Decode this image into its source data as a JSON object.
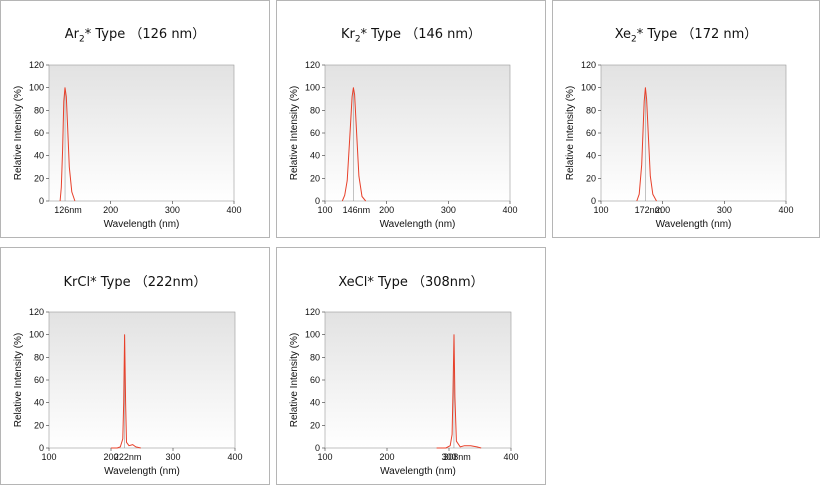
{
  "chart_data": [
    {
      "type": "line",
      "title": "Ar",
      "title_sub": "2",
      "title_rest": "* Type",
      "title_peak": "（126 nm）",
      "xlabel": "Wavelength (nm)",
      "ylabel": "Relative Intensity (%)",
      "xlim": [
        100,
        400
      ],
      "ylim": [
        0,
        120
      ],
      "x_ticks": [
        "200",
        "300",
        "400"
      ],
      "y_ticks": [
        "0",
        "20",
        "40",
        "60",
        "80",
        "100",
        "120"
      ],
      "peak_label": "126nm",
      "peak_nm": 126,
      "series": [
        {
          "x": [
            118,
            120,
            122,
            124,
            126,
            128,
            130,
            133,
            137,
            142
          ],
          "y": [
            0,
            12,
            45,
            88,
            100,
            92,
            68,
            30,
            8,
            0
          ]
        }
      ],
      "colors": {
        "line": "#e8402a",
        "plot_bg_top": "#e2e2e2",
        "plot_bg_bottom": "#ffffff"
      }
    },
    {
      "type": "line",
      "title": "Kr",
      "title_sub": "2",
      "title_rest": "* Type",
      "title_peak": "（146 nm）",
      "xlabel": "Wavelength (nm)",
      "ylabel": "Relative Intensity (%)",
      "xlim": [
        100,
        400
      ],
      "ylim": [
        0,
        120
      ],
      "x_ticks": [
        "100",
        "200",
        "300",
        "400"
      ],
      "y_ticks": [
        "0",
        "20",
        "40",
        "60",
        "80",
        "100",
        "120"
      ],
      "peak_label": "146nm",
      "peak_nm": 146,
      "series": [
        {
          "x": [
            128,
            132,
            136,
            140,
            144,
            146,
            148,
            151,
            155,
            160,
            166
          ],
          "y": [
            0,
            5,
            18,
            55,
            92,
            100,
            94,
            62,
            22,
            4,
            0
          ]
        }
      ],
      "colors": {
        "line": "#e8402a",
        "plot_bg_top": "#e2e2e2",
        "plot_bg_bottom": "#ffffff"
      }
    },
    {
      "type": "line",
      "title": "Xe",
      "title_sub": "2",
      "title_rest": "* Type",
      "title_peak": "（172 nm）",
      "xlabel": "Wavelength (nm)",
      "ylabel": "Relative Intensity (%)",
      "xlim": [
        100,
        400
      ],
      "ylim": [
        0,
        120
      ],
      "x_ticks": [
        "100",
        "200",
        "300",
        "400"
      ],
      "y_ticks": [
        "0",
        "20",
        "40",
        "60",
        "80",
        "100",
        "120"
      ],
      "peak_label": "172nm",
      "peak_nm": 172,
      "series": [
        {
          "x": [
            158,
            162,
            166,
            170,
            172,
            174,
            177,
            180,
            184,
            190
          ],
          "y": [
            0,
            6,
            32,
            88,
            100,
            90,
            55,
            22,
            6,
            0
          ]
        }
      ],
      "colors": {
        "line": "#e8402a",
        "plot_bg_top": "#e2e2e2",
        "plot_bg_bottom": "#ffffff"
      }
    },
    {
      "type": "line",
      "title": "KrCl* Type",
      "title_sub": "",
      "title_rest": "",
      "title_peak": "（222nm）",
      "xlabel": "Wavelength (nm)",
      "ylabel": "Relative Intensity (%)",
      "xlim": [
        100,
        400
      ],
      "ylim": [
        0,
        120
      ],
      "x_ticks": [
        "100",
        "200",
        "300",
        "400"
      ],
      "y_ticks": [
        "0",
        "20",
        "40",
        "60",
        "80",
        "100",
        "120"
      ],
      "peak_label": "222nm",
      "peak_nm": 222,
      "series": [
        {
          "x": [
            200,
            210,
            215,
            219,
            220.5,
            222,
            223.5,
            225,
            229,
            235,
            240,
            248
          ],
          "y": [
            0,
            0,
            1,
            8,
            40,
            100,
            40,
            5,
            2,
            3,
            1,
            0
          ]
        }
      ],
      "colors": {
        "line": "#e8402a",
        "plot_bg_top": "#e2e2e2",
        "plot_bg_bottom": "#ffffff"
      }
    },
    {
      "type": "line",
      "title": "XeCl* Type",
      "title_sub": "",
      "title_rest": "",
      "title_peak": "（308nm）",
      "xlabel": "Wavelength (nm)",
      "ylabel": "Relative Intensity (%)",
      "xlim": [
        100,
        400
      ],
      "ylim": [
        0,
        120
      ],
      "x_ticks": [
        "100",
        "200",
        "300",
        "400"
      ],
      "y_ticks": [
        "0",
        "20",
        "40",
        "60",
        "80",
        "100",
        "120"
      ],
      "peak_label": "308nm",
      "peak_nm": 308,
      "series": [
        {
          "x": [
            280,
            295,
            302,
            305,
            306.5,
            308,
            309.5,
            312,
            318,
            325,
            335,
            345,
            352
          ],
          "y": [
            0,
            0,
            2,
            12,
            50,
            100,
            45,
            6,
            1,
            2,
            2,
            1,
            0
          ]
        }
      ],
      "colors": {
        "line": "#e8402a",
        "plot_bg_top": "#e2e2e2",
        "plot_bg_bottom": "#ffffff"
      }
    }
  ]
}
